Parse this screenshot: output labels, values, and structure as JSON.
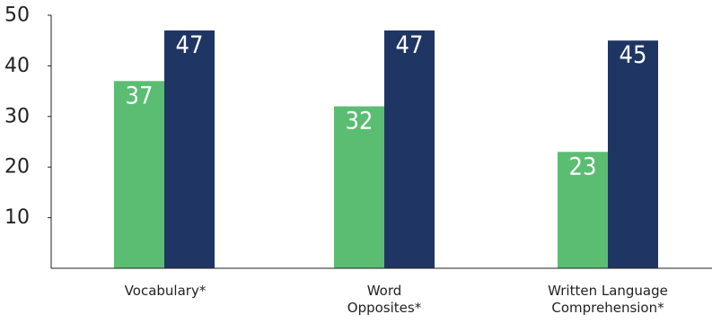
{
  "chart_data": {
    "type": "bar",
    "title": "",
    "xlabel": "",
    "ylabel": "",
    "categories": [
      [
        "Vocabulary*"
      ],
      [
        "Word",
        "Opposites*"
      ],
      [
        "Written Language",
        "Comprehension*"
      ]
    ],
    "series": [
      {
        "color": "#5bbd72",
        "values": [
          37,
          32,
          23
        ]
      },
      {
        "color": "#1f3564",
        "values": [
          47,
          47,
          45
        ]
      }
    ],
    "ylim": [
      0,
      50
    ],
    "yticks": [
      10,
      20,
      30,
      40,
      50
    ],
    "data_labels": true,
    "grid": false,
    "legend": "none"
  }
}
